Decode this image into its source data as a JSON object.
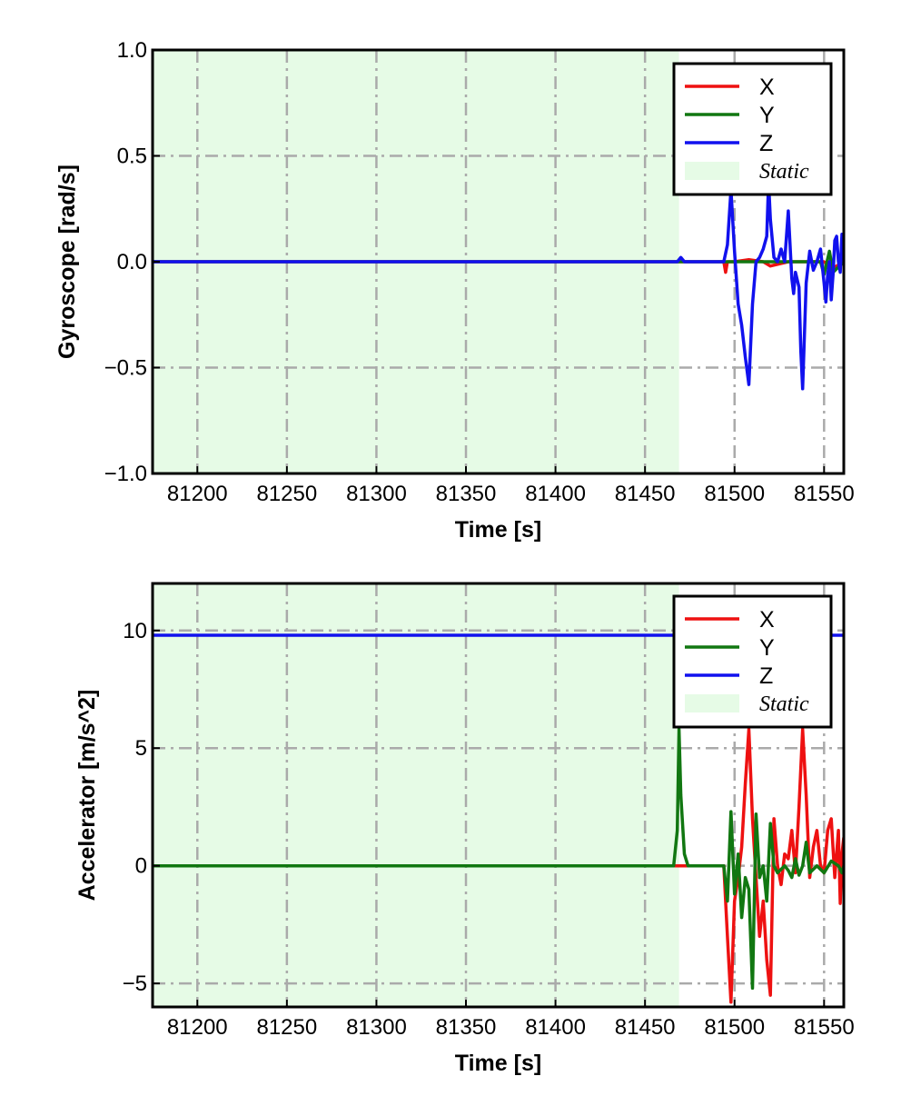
{
  "chart_data": [
    {
      "type": "line",
      "xlabel": "Time [s]",
      "ylabel": "Gyroscope [rad/s]",
      "xlim": [
        81175,
        81561
      ],
      "ylim": [
        -1.0,
        1.0
      ],
      "x_ticks": [
        81200,
        81250,
        81300,
        81350,
        81400,
        81450,
        81500,
        81550
      ],
      "y_ticks": [
        -1.0,
        -0.5,
        0.0,
        0.5,
        1.0
      ],
      "y_tick_labels": [
        "−1.0",
        "−0.5",
        "0.0",
        "0.5",
        "1.0"
      ],
      "grid": true,
      "grid_style": "dash-dot",
      "legend_position": "top-right",
      "static_region": {
        "label": "Static",
        "x_start": 81175,
        "x_end": 81469,
        "color": "#e6fbe6"
      },
      "series": [
        {
          "name": "X",
          "color": "#ee1111",
          "x": [
            81175,
            81469,
            81474,
            81494,
            81495,
            81496,
            81500,
            81508,
            81516,
            81520,
            81530,
            81540,
            81550,
            81555,
            81561
          ],
          "y": [
            0.0,
            0.0,
            0.0,
            0.0,
            -0.05,
            0.0,
            0.0,
            0.01,
            0.0,
            -0.02,
            0.0,
            0.0,
            0.0,
            -0.03,
            0.0
          ]
        },
        {
          "name": "Y",
          "color": "#117711",
          "x": [
            81175,
            81469,
            81500,
            81520,
            81530,
            81540,
            81548,
            81550,
            81553,
            81555,
            81561
          ],
          "y": [
            0.0,
            0.0,
            0.0,
            0.0,
            0.0,
            0.0,
            0.0,
            -0.06,
            0.05,
            -0.05,
            0.0
          ]
        },
        {
          "name": "Z",
          "color": "#1111ee",
          "x": [
            81175,
            81468,
            81470,
            81472,
            81475,
            81494,
            81496,
            81498,
            81500,
            81502,
            81504,
            81506,
            81508,
            81510,
            81512,
            81514,
            81516,
            81518,
            81519,
            81520,
            81522,
            81524,
            81526,
            81528,
            81530,
            81532,
            81533,
            81534,
            81536,
            81537,
            81538,
            81540,
            81542,
            81544,
            81546,
            81548,
            81550,
            81551,
            81552,
            81553,
            81554,
            81555,
            81556,
            81557,
            81558,
            81559,
            81560,
            81561
          ],
          "y": [
            0.0,
            0.0,
            0.02,
            0.0,
            0.0,
            0.0,
            0.08,
            0.34,
            0.05,
            -0.2,
            -0.3,
            -0.45,
            -0.58,
            -0.2,
            0.0,
            0.02,
            0.06,
            0.12,
            0.38,
            0.2,
            0.02,
            0.0,
            0.06,
            0.0,
            0.24,
            -0.08,
            -0.15,
            -0.05,
            -0.12,
            -0.42,
            -0.6,
            -0.1,
            0.05,
            -0.04,
            0.0,
            0.06,
            -0.1,
            -0.19,
            -0.06,
            0.0,
            -0.18,
            -0.06,
            0.1,
            0.12,
            0.0,
            -0.05,
            0.13,
            0.0
          ]
        }
      ]
    },
    {
      "type": "line",
      "xlabel": "Time [s]",
      "ylabel": "Accelerator [m/s^2]",
      "xlim": [
        81175,
        81561
      ],
      "ylim": [
        -6.0,
        12.0
      ],
      "x_ticks": [
        81200,
        81250,
        81300,
        81350,
        81400,
        81450,
        81500,
        81550
      ],
      "y_ticks": [
        -5,
        0,
        5,
        10
      ],
      "y_tick_labels": [
        "−5",
        "0",
        "5",
        "10"
      ],
      "grid": true,
      "grid_style": "dash-dot",
      "legend_position": "top-right",
      "static_region": {
        "label": "Static",
        "x_start": 81175,
        "x_end": 81469,
        "color": "#e6fbe6"
      },
      "series": [
        {
          "name": "X",
          "color": "#ee1111",
          "x": [
            81175,
            81469,
            81494,
            81496,
            81498,
            81500,
            81502,
            81504,
            81506,
            81508,
            81510,
            81512,
            81514,
            81516,
            81518,
            81520,
            81522,
            81524,
            81526,
            81528,
            81530,
            81532,
            81534,
            81536,
            81538,
            81540,
            81542,
            81544,
            81546,
            81548,
            81550,
            81552,
            81554,
            81556,
            81558,
            81559,
            81560,
            81561
          ],
          "y": [
            0.0,
            0.0,
            0.0,
            -3.0,
            -5.8,
            -1.5,
            -0.5,
            0.8,
            3.5,
            5.8,
            2.0,
            -0.5,
            -3.0,
            -1.5,
            -4.0,
            -5.5,
            2.0,
            0.0,
            -0.8,
            0.5,
            0.3,
            1.5,
            -0.3,
            2.5,
            5.8,
            3.0,
            -0.5,
            0.8,
            1.5,
            0.0,
            -0.3,
            1.5,
            2.0,
            -0.5,
            1.5,
            -1.6,
            0.5,
            1.2
          ]
        },
        {
          "name": "Y",
          "color": "#117711",
          "x": [
            81175,
            81466,
            81468,
            81469,
            81470,
            81472,
            81474,
            81476,
            81494,
            81496,
            81498,
            81500,
            81502,
            81504,
            81506,
            81508,
            81510,
            81512,
            81514,
            81516,
            81518,
            81520,
            81522,
            81524,
            81528,
            81530,
            81532,
            81534,
            81536,
            81538,
            81540,
            81542,
            81546,
            81550,
            81554,
            81558,
            81560,
            81561
          ],
          "y": [
            0.0,
            0.0,
            1.5,
            5.8,
            3.0,
            0.5,
            0.0,
            0.0,
            0.0,
            -1.5,
            2.3,
            -1.2,
            0.5,
            -2.2,
            -0.5,
            -1.0,
            -5.2,
            2.2,
            -0.5,
            0.0,
            -1.5,
            1.8,
            0.0,
            -0.3,
            0.0,
            -0.2,
            -0.5,
            0.3,
            -0.4,
            0.0,
            1.0,
            -0.3,
            0.0,
            -0.3,
            0.2,
            0.0,
            -0.3,
            0.0
          ]
        },
        {
          "name": "Z",
          "color": "#1111ee",
          "x": [
            81175,
            81561
          ],
          "y": [
            9.8,
            9.8
          ]
        }
      ]
    }
  ]
}
